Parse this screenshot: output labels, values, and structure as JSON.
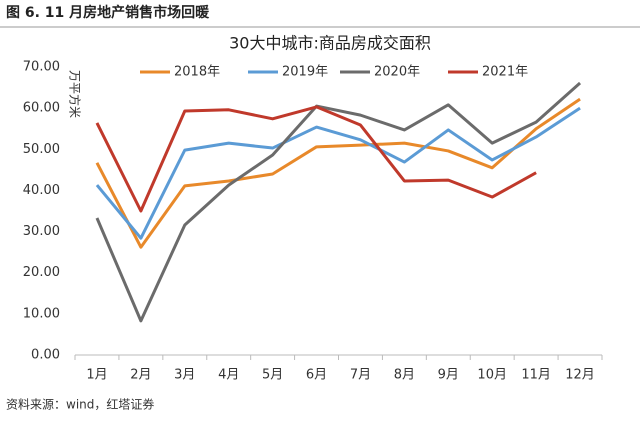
{
  "header": "图 6. 11 月房地产销售市场回暖",
  "source": "资料来源：wind，红塔证券",
  "chart_data": {
    "type": "line",
    "title": "30大中城市:商品房成交面积",
    "y_label": "万平方米",
    "categories": [
      "1月",
      "2月",
      "3月",
      "4月",
      "5月",
      "6月",
      "7月",
      "8月",
      "9月",
      "10月",
      "11月",
      "12月"
    ],
    "series": [
      {
        "name": "2018年",
        "color": "#e8892a",
        "values": [
          46.7,
          26.2,
          41.1,
          42.3,
          44.0,
          50.6,
          51.0,
          51.5,
          49.6,
          45.5,
          55.0,
          62.2
        ]
      },
      {
        "name": "2019年",
        "color": "#5b9bd5",
        "values": [
          41.3,
          28.4,
          49.8,
          51.5,
          50.3,
          55.4,
          52.3,
          46.9,
          54.7,
          47.4,
          53.0,
          60.0
        ]
      },
      {
        "name": "2020年",
        "color": "#6b6b6b",
        "values": [
          33.3,
          8.3,
          31.6,
          41.3,
          48.6,
          60.5,
          58.3,
          54.7,
          60.8,
          51.5,
          56.6,
          66.1
        ]
      },
      {
        "name": "2021年",
        "color": "#c0392b",
        "values": [
          56.4,
          35.0,
          59.3,
          59.6,
          57.4,
          60.3,
          55.9,
          42.3,
          42.5,
          38.4,
          44.3,
          null
        ]
      }
    ],
    "ylim": [
      0,
      70
    ],
    "yticks": [
      {
        "value": 0,
        "label": "0.00"
      },
      {
        "value": 10,
        "label": "10.00"
      },
      {
        "value": 20,
        "label": "20.00"
      },
      {
        "value": 30,
        "label": "30.00"
      },
      {
        "value": 40,
        "label": "40.00"
      },
      {
        "value": 50,
        "label": "50.00"
      },
      {
        "value": 60,
        "label": "60.00"
      },
      {
        "value": 70,
        "label": "70.00"
      }
    ],
    "legend": "top"
  }
}
